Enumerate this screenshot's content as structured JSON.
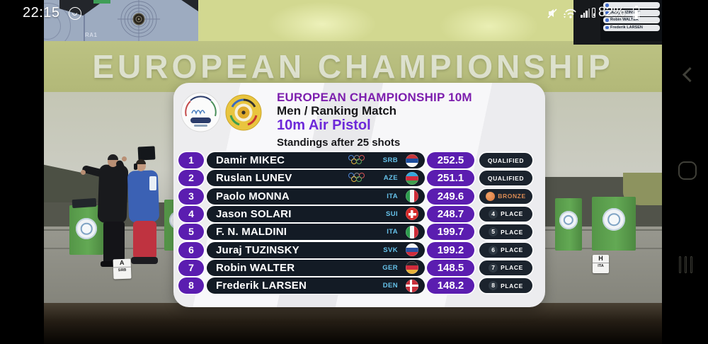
{
  "status_bar": {
    "time": "22:15",
    "battery_percent": "82%",
    "icons": [
      "whatsapp-notification",
      "mute",
      "wifi-with-data-arrows",
      "cellular-signal",
      "no-sim",
      "battery"
    ]
  },
  "nav_bar": {
    "icons": [
      "back-chevron",
      "home-squircle",
      "recent-apps-bars"
    ]
  },
  "scene": {
    "banner_text": "EUROPEAN CHAMPIONSHIP",
    "monitor_label": "RA1",
    "lane_cards": [
      {
        "letter": "A",
        "code": "SRB"
      },
      {
        "letter": "H",
        "code": "ITA"
      }
    ],
    "mini_scoreboard": {
      "rows": [
        {
          "name": ""
        },
        {
          "name": "Juraj TUZINSKY"
        },
        {
          "name": "Robin WALTER"
        },
        {
          "name": "Frederik LARSEN"
        }
      ]
    }
  },
  "panel": {
    "title": "EUROPEAN CHAMPIONSHIP 10M",
    "subtitle": "Men / Ranking Match",
    "event": "10m Air Pistol",
    "standings_label": "Standings after 25 shots",
    "logos": [
      "european-championship-tallinn-logo",
      "shooting-federation-logo"
    ],
    "rows": [
      {
        "rank": "1",
        "name": "Damir MIKEC",
        "noc": "SRB",
        "flag": "srb",
        "score": "252.5",
        "status": "QUALIFIED",
        "status_type": "qualified",
        "olympic": true
      },
      {
        "rank": "2",
        "name": "Ruslan LUNEV",
        "noc": "AZE",
        "flag": "aze",
        "score": "251.1",
        "status": "QUALIFIED",
        "status_type": "qualified",
        "olympic": true
      },
      {
        "rank": "3",
        "name": "Paolo MONNA",
        "noc": "ITA",
        "flag": "ita",
        "score": "249.6",
        "status": "BRONZE",
        "status_type": "bronze",
        "olympic": false
      },
      {
        "rank": "4",
        "name": "Jason SOLARI",
        "noc": "SUI",
        "flag": "sui",
        "score": "248.7",
        "status": "PLACE",
        "status_type": "place",
        "place": "4",
        "olympic": false
      },
      {
        "rank": "5",
        "name": "F. N. MALDINI",
        "noc": "ITA",
        "flag": "ita",
        "score": "199.7",
        "status": "PLACE",
        "status_type": "place",
        "place": "5",
        "olympic": false
      },
      {
        "rank": "6",
        "name": "Juraj TUZINSKY",
        "noc": "SVK",
        "flag": "svk",
        "score": "199.2",
        "status": "PLACE",
        "status_type": "place",
        "place": "6",
        "olympic": false
      },
      {
        "rank": "7",
        "name": "Robin WALTER",
        "noc": "GER",
        "flag": "ger",
        "score": "148.5",
        "status": "PLACE",
        "status_type": "place",
        "place": "7",
        "olympic": false
      },
      {
        "rank": "8",
        "name": "Frederik LARSEN",
        "noc": "DEN",
        "flag": "den",
        "score": "148.2",
        "status": "PLACE",
        "status_type": "place",
        "place": "8",
        "olympic": false
      }
    ]
  },
  "colors": {
    "accent_purple": "#5b1db0",
    "pill_dark": "#131b25",
    "noc_cyan": "#66c2ea",
    "bronze": "#dc8c54",
    "title_purple": "#7d1fae",
    "event_purple": "#6d28d9",
    "wall_olive": "#b6bc7d"
  }
}
